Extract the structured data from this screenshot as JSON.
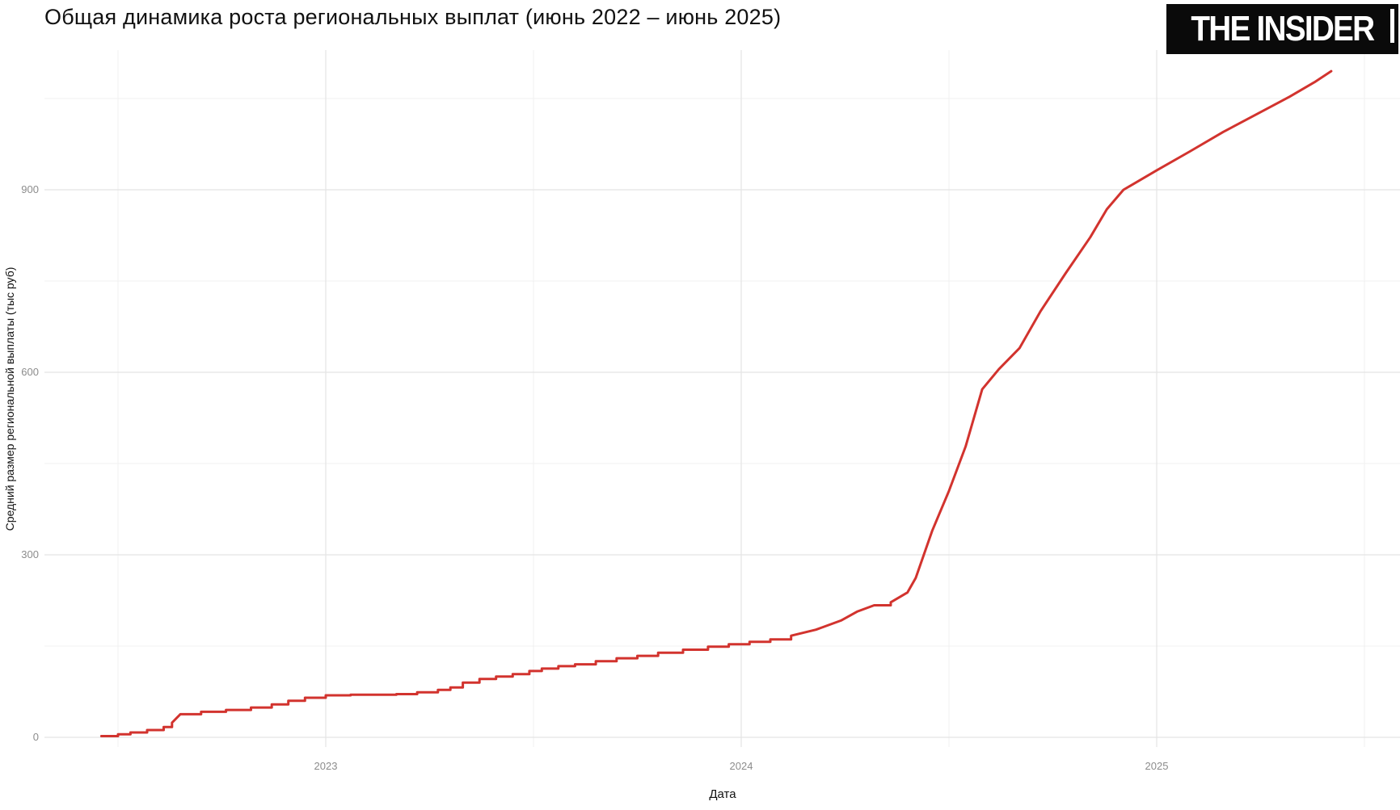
{
  "page": {
    "title": "Общая динамика роста региональных выплат (июнь 2022 – июнь 2025)",
    "logo_text": "THE INSIDER"
  },
  "chart_data": {
    "type": "line",
    "title": "Общая динамика роста региональных выплат (июнь 2022 – июнь 2025)",
    "xlabel": "Дата",
    "ylabel": "Средний размер региональной выплаты (тыс руб)",
    "xlim": [
      2022.32,
      2025.59
    ],
    "ylim": [
      -16,
      1130
    ],
    "x_ticks": [
      2023,
      2024,
      2025
    ],
    "x_tick_labels": [
      "2023",
      "2024",
      "2025"
    ],
    "x_minor_ticks": [
      2022.5,
      2023.5,
      2024.5,
      2025.5
    ],
    "y_ticks": [
      0,
      300,
      600,
      900
    ],
    "y_tick_labels": [
      "0",
      "300",
      "600",
      "900"
    ],
    "y_minor_ticks": [
      150,
      450,
      750,
      1050
    ],
    "grid": {
      "major": true,
      "minor": true,
      "background": "#ffffff",
      "major_color": "#e4e4e4",
      "minor_color": "#f1f1f1"
    },
    "legend": "none",
    "series": [
      {
        "name": "Средний размер региональной выплаты (тыс руб)",
        "color": "#d2332e",
        "points": [
          [
            2022.46,
            2
          ],
          [
            2022.5,
            5
          ],
          [
            2022.53,
            8
          ],
          [
            2022.57,
            12
          ],
          [
            2022.61,
            17
          ],
          [
            2022.63,
            24
          ],
          [
            2022.65,
            38
          ],
          [
            2022.7,
            42
          ],
          [
            2022.76,
            45
          ],
          [
            2022.82,
            49
          ],
          [
            2022.87,
            54
          ],
          [
            2022.91,
            60
          ],
          [
            2022.95,
            65
          ],
          [
            2023.0,
            69
          ],
          [
            2023.06,
            70
          ],
          [
            2023.12,
            70
          ],
          [
            2023.17,
            71
          ],
          [
            2023.22,
            74
          ],
          [
            2023.27,
            78
          ],
          [
            2023.3,
            82
          ],
          [
            2023.33,
            90
          ],
          [
            2023.37,
            96
          ],
          [
            2023.41,
            100
          ],
          [
            2023.45,
            104
          ],
          [
            2023.49,
            109
          ],
          [
            2023.52,
            113
          ],
          [
            2023.56,
            117
          ],
          [
            2023.6,
            120
          ],
          [
            2023.65,
            125
          ],
          [
            2023.7,
            130
          ],
          [
            2023.75,
            134
          ],
          [
            2023.8,
            139
          ],
          [
            2023.86,
            144
          ],
          [
            2023.92,
            149
          ],
          [
            2023.97,
            153
          ],
          [
            2024.02,
            157
          ],
          [
            2024.07,
            161
          ],
          [
            2024.12,
            167
          ],
          [
            2024.18,
            177
          ],
          [
            2024.24,
            192
          ],
          [
            2024.28,
            207
          ],
          [
            2024.32,
            217
          ],
          [
            2024.36,
            222
          ],
          [
            2024.4,
            238
          ],
          [
            2024.42,
            262
          ],
          [
            2024.46,
            340
          ],
          [
            2024.5,
            405
          ],
          [
            2024.54,
            478
          ],
          [
            2024.58,
            572
          ],
          [
            2024.62,
            605
          ],
          [
            2024.67,
            640
          ],
          [
            2024.72,
            700
          ],
          [
            2024.78,
            762
          ],
          [
            2024.84,
            822
          ],
          [
            2024.88,
            868
          ],
          [
            2024.92,
            900
          ],
          [
            2025.0,
            932
          ],
          [
            2025.08,
            963
          ],
          [
            2025.16,
            995
          ],
          [
            2025.24,
            1024
          ],
          [
            2025.32,
            1053
          ],
          [
            2025.38,
            1077
          ],
          [
            2025.42,
            1095
          ]
        ]
      }
    ]
  }
}
